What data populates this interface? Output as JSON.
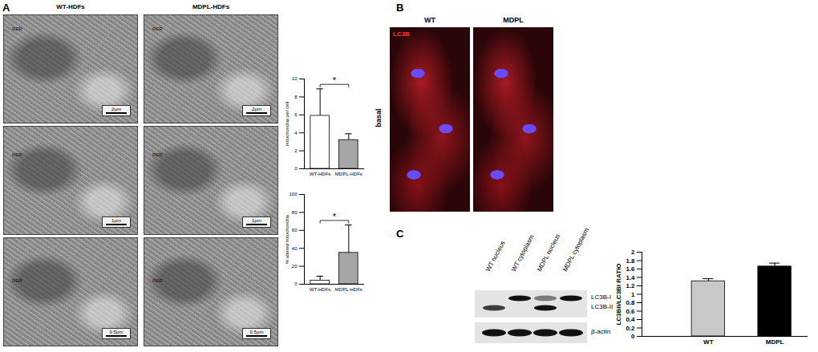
{
  "figure": {
    "panel_a": {
      "letter": "A",
      "columns": [
        "WT-HDFs",
        "MDPL-HDFs"
      ],
      "scale_bars": [
        [
          "2μm",
          "2μm"
        ],
        [
          "1μm",
          "1μm"
        ],
        [
          "0.5μm",
          "0.5μm"
        ]
      ],
      "image_labels": [
        [
          "RER",
          "RER"
        ],
        [
          "RER",
          "RER"
        ],
        [
          "RER",
          "RER"
        ]
      ]
    },
    "panel_b": {
      "letter": "B",
      "columns": [
        "WT",
        "MDPL"
      ],
      "row": "basal",
      "stain": "LC3B"
    },
    "panel_c": {
      "letter": "C",
      "blot": {
        "lanes": [
          "WT nucleus",
          "WT cytoplasm",
          "MDPL nucleus",
          "MDPL cytoplasm"
        ],
        "bands": [
          "LC3B-I",
          "LC3B-II"
        ],
        "band_intensity": [
          [
            0,
            1,
            0.5,
            1
          ],
          [
            0.8,
            0,
            1,
            0
          ]
        ],
        "loading": "β-actin",
        "loading_intensity": [
          1,
          1,
          1,
          1
        ]
      }
    }
  },
  "chart_data": [
    {
      "type": "bar",
      "ylabel": "mitochondria per cell",
      "categories": [
        "WT-HDFs",
        "MDPL-HDFs"
      ],
      "values": [
        5.9,
        3.2
      ],
      "errors": [
        3.0,
        0.7
      ],
      "colors": [
        "#ffffff",
        "#a6a6a6"
      ],
      "ylim": [
        0,
        10
      ],
      "yticks": [
        0,
        2,
        4,
        6,
        8,
        10
      ],
      "annotation": "*"
    },
    {
      "type": "bar",
      "ylabel": "% altered mitochondria",
      "categories": [
        "WT-HDFs",
        "MDPL-HDFs"
      ],
      "values": [
        4,
        35
      ],
      "errors": [
        5,
        31
      ],
      "colors": [
        "#ffffff",
        "#a6a6a6"
      ],
      "ylim": [
        0,
        100
      ],
      "yticks": [
        0,
        20,
        40,
        60,
        80,
        100
      ],
      "annotation": "*"
    },
    {
      "type": "bar",
      "ylabel": "LC3BII/LC3BI RATIO",
      "categories": [
        "WT",
        "MDPL"
      ],
      "values": [
        1.31,
        1.66
      ],
      "errors": [
        0.06,
        0.08
      ],
      "colors": [
        "#c8c8c8",
        "#000000"
      ],
      "ylim": [
        0,
        2
      ],
      "yticks": [
        0,
        0.2,
        0.4,
        0.6,
        0.8,
        1,
        1.2,
        1.4,
        1.6,
        1.8,
        2
      ]
    }
  ]
}
